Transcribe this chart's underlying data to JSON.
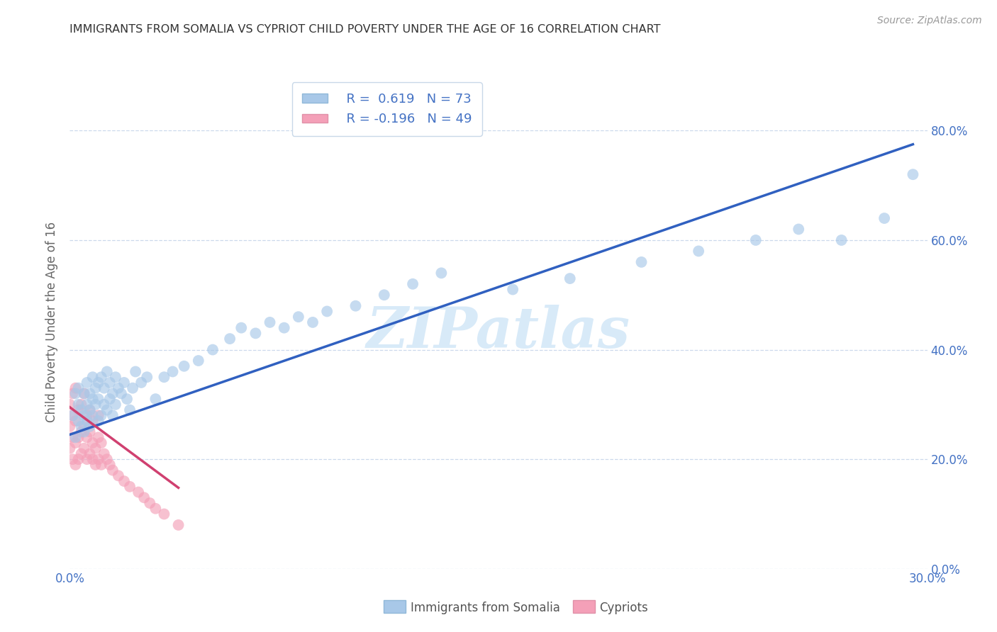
{
  "title": "IMMIGRANTS FROM SOMALIA VS CYPRIOT CHILD POVERTY UNDER THE AGE OF 16 CORRELATION CHART",
  "source": "Source: ZipAtlas.com",
  "ylabel": "Child Poverty Under the Age of 16",
  "xlabel_somalia": "Immigrants from Somalia",
  "xlabel_cypriots": "Cypriots",
  "xlim": [
    0.0,
    0.3
  ],
  "ylim": [
    0.0,
    0.9
  ],
  "yticks": [
    0.0,
    0.2,
    0.4,
    0.6,
    0.8
  ],
  "xticks": [
    0.0,
    0.3
  ],
  "r_somalia": 0.619,
  "n_somalia": 73,
  "r_cypriots": -0.196,
  "n_cypriots": 49,
  "color_somalia": "#a8c8e8",
  "color_cypriots": "#f4a0b8",
  "line_color_somalia": "#3060c0",
  "line_color_cypriots": "#d04070",
  "watermark_color": "#d8eaf8",
  "somalia_x": [
    0.001,
    0.002,
    0.002,
    0.003,
    0.003,
    0.003,
    0.004,
    0.004,
    0.005,
    0.005,
    0.005,
    0.006,
    0.006,
    0.006,
    0.007,
    0.007,
    0.007,
    0.008,
    0.008,
    0.008,
    0.009,
    0.009,
    0.01,
    0.01,
    0.01,
    0.011,
    0.011,
    0.012,
    0.012,
    0.013,
    0.013,
    0.014,
    0.014,
    0.015,
    0.015,
    0.016,
    0.016,
    0.017,
    0.018,
    0.019,
    0.02,
    0.021,
    0.022,
    0.023,
    0.025,
    0.027,
    0.03,
    0.033,
    0.036,
    0.04,
    0.045,
    0.05,
    0.056,
    0.06,
    0.065,
    0.07,
    0.075,
    0.08,
    0.085,
    0.09,
    0.1,
    0.11,
    0.12,
    0.13,
    0.155,
    0.175,
    0.2,
    0.22,
    0.24,
    0.255,
    0.27,
    0.285,
    0.295
  ],
  "somalia_y": [
    0.28,
    0.24,
    0.32,
    0.27,
    0.3,
    0.33,
    0.26,
    0.29,
    0.25,
    0.28,
    0.32,
    0.27,
    0.3,
    0.34,
    0.26,
    0.29,
    0.32,
    0.28,
    0.31,
    0.35,
    0.3,
    0.33,
    0.27,
    0.31,
    0.34,
    0.28,
    0.35,
    0.3,
    0.33,
    0.29,
    0.36,
    0.31,
    0.34,
    0.28,
    0.32,
    0.3,
    0.35,
    0.33,
    0.32,
    0.34,
    0.31,
    0.29,
    0.33,
    0.36,
    0.34,
    0.35,
    0.31,
    0.35,
    0.36,
    0.37,
    0.38,
    0.4,
    0.42,
    0.44,
    0.43,
    0.45,
    0.44,
    0.46,
    0.45,
    0.47,
    0.48,
    0.5,
    0.52,
    0.54,
    0.51,
    0.53,
    0.56,
    0.58,
    0.6,
    0.62,
    0.6,
    0.64,
    0.72
  ],
  "cypriots_x": [
    0.0,
    0.0,
    0.0,
    0.001,
    0.001,
    0.001,
    0.001,
    0.002,
    0.002,
    0.002,
    0.002,
    0.003,
    0.003,
    0.003,
    0.004,
    0.004,
    0.004,
    0.005,
    0.005,
    0.005,
    0.006,
    0.006,
    0.006,
    0.007,
    0.007,
    0.007,
    0.008,
    0.008,
    0.008,
    0.009,
    0.009,
    0.01,
    0.01,
    0.01,
    0.011,
    0.011,
    0.012,
    0.013,
    0.014,
    0.015,
    0.017,
    0.019,
    0.021,
    0.024,
    0.026,
    0.028,
    0.03,
    0.033,
    0.038
  ],
  "cypriots_y": [
    0.22,
    0.26,
    0.3,
    0.2,
    0.24,
    0.28,
    0.32,
    0.19,
    0.23,
    0.27,
    0.33,
    0.2,
    0.24,
    0.29,
    0.21,
    0.25,
    0.3,
    0.22,
    0.26,
    0.32,
    0.2,
    0.24,
    0.28,
    0.21,
    0.25,
    0.29,
    0.2,
    0.23,
    0.27,
    0.19,
    0.22,
    0.2,
    0.24,
    0.28,
    0.19,
    0.23,
    0.21,
    0.2,
    0.19,
    0.18,
    0.17,
    0.16,
    0.15,
    0.14,
    0.13,
    0.12,
    0.11,
    0.1,
    0.08
  ],
  "trend_somalia_x0": 0.0,
  "trend_somalia_y0": 0.245,
  "trend_somalia_x1": 0.295,
  "trend_somalia_y1": 0.775,
  "trend_cyp_x0": 0.0,
  "trend_cyp_y0": 0.295,
  "trend_cyp_x1": 0.038,
  "trend_cyp_y1": 0.148
}
